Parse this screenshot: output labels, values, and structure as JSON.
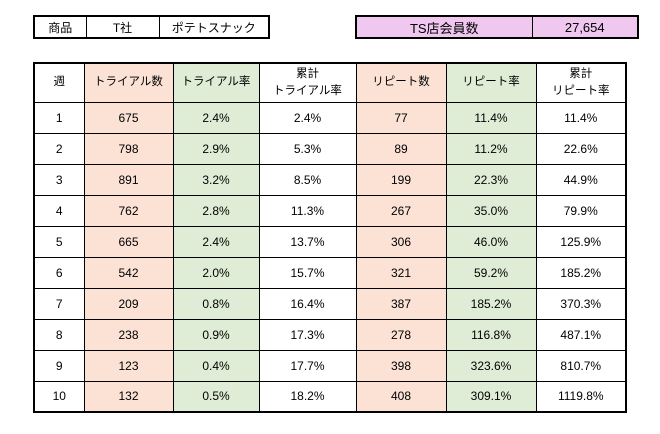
{
  "product_info": {
    "label": "商品",
    "company": "T社",
    "product": "ポテトスナック"
  },
  "member_info": {
    "label": "TS店会員数",
    "value": "27,654"
  },
  "table": {
    "columns": [
      {
        "label": "週",
        "bg": "white"
      },
      {
        "label": "トライアル数",
        "bg": "pink"
      },
      {
        "label": "トライアル率",
        "bg": "green"
      },
      {
        "label": "累計\nトライアル率",
        "bg": "white"
      },
      {
        "label": "リピート数",
        "bg": "pink"
      },
      {
        "label": "リピート率",
        "bg": "green"
      },
      {
        "label": "累計\nリピート率",
        "bg": "white"
      }
    ],
    "rows": [
      [
        "1",
        "675",
        "2.4%",
        "2.4%",
        "77",
        "11.4%",
        "11.4%"
      ],
      [
        "2",
        "798",
        "2.9%",
        "5.3%",
        "89",
        "11.2%",
        "22.6%"
      ],
      [
        "3",
        "891",
        "3.2%",
        "8.5%",
        "199",
        "22.3%",
        "44.9%"
      ],
      [
        "4",
        "762",
        "2.8%",
        "11.3%",
        "267",
        "35.0%",
        "79.9%"
      ],
      [
        "5",
        "665",
        "2.4%",
        "13.7%",
        "306",
        "46.0%",
        "125.9%"
      ],
      [
        "6",
        "542",
        "2.0%",
        "15.7%",
        "321",
        "59.2%",
        "185.2%"
      ],
      [
        "7",
        "209",
        "0.8%",
        "16.4%",
        "387",
        "185.2%",
        "370.3%"
      ],
      [
        "8",
        "238",
        "0.9%",
        "17.3%",
        "278",
        "116.8%",
        "487.1%"
      ],
      [
        "9",
        "123",
        "0.4%",
        "17.7%",
        "398",
        "323.6%",
        "810.7%"
      ],
      [
        "10",
        "132",
        "0.5%",
        "18.2%",
        "408",
        "309.1%",
        "1119.8%"
      ]
    ]
  },
  "colors": {
    "pink": "#fbe2d5",
    "green": "#dfedd6",
    "purple": "#efc7ef",
    "border": "#000000"
  }
}
